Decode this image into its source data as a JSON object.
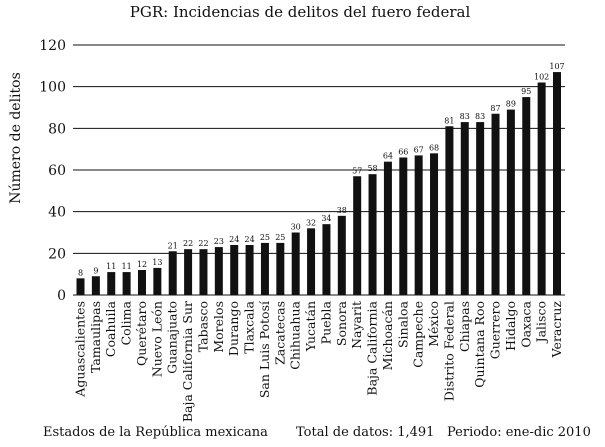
{
  "chart_data": {
    "type": "bar",
    "title": "PGR: Incidencias de delitos del fuero federal",
    "ylabel": "Número de delitos",
    "xlabel": "",
    "ylim": [
      0,
      120
    ],
    "yticks": [
      0,
      20,
      40,
      60,
      80,
      100,
      120
    ],
    "grid": true,
    "bar_color": "#111111",
    "categories": [
      "Aguascalientes",
      "Tamaulipas",
      "Coahuila",
      "Colima",
      "Querétaro",
      "Nuevo León",
      "Guanajuato",
      "Baja California Sur",
      "Tabasco",
      "Morelos",
      "Durango",
      "Tlaxcala",
      "San Luis Potosí",
      "Zacatecas",
      "Chihuahua",
      "Yucatán",
      "Puebla",
      "Sonora",
      "Nayarit",
      "Baja California",
      "Michoacán",
      "Sinaloa",
      "Campeche",
      "México",
      "Distrito Federal",
      "Chiapas",
      "Quintana Roo",
      "Guerrero",
      "Hidalgo",
      "Oaxaca",
      "Jalisco",
      "Veracruz"
    ],
    "values": [
      8,
      9,
      11,
      11,
      12,
      13,
      21,
      22,
      22,
      23,
      24,
      24,
      25,
      25,
      30,
      32,
      34,
      38,
      57,
      58,
      64,
      66,
      67,
      68,
      81,
      83,
      83,
      87,
      89,
      95,
      102,
      107
    ]
  },
  "footer": {
    "states": "Estados de la República mexicana",
    "total": "Total de datos: 1,491",
    "period": "Periodo: ene-dic  2010"
  }
}
